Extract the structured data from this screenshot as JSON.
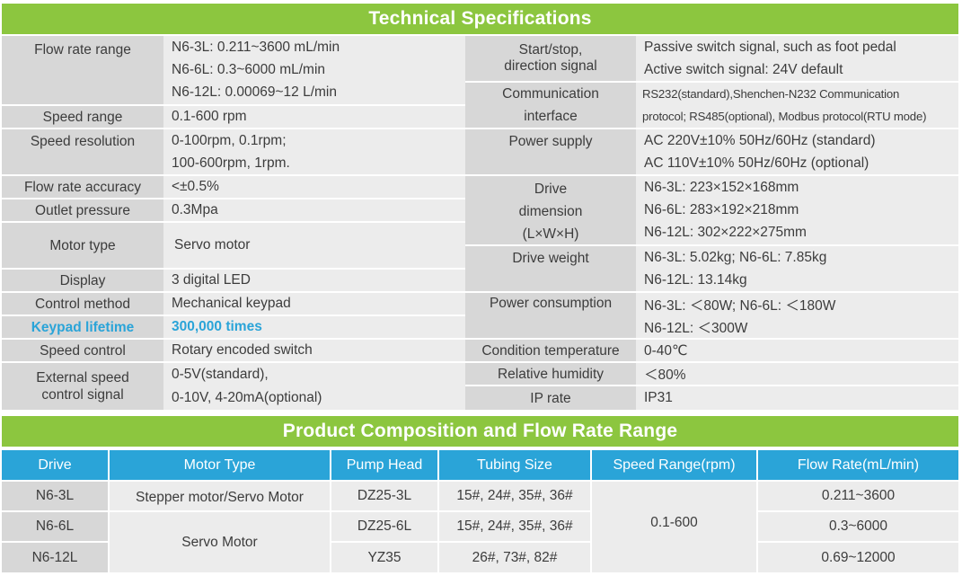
{
  "tech_title": "Technical Specifications",
  "left_specs": [
    {
      "label": "Flow rate range",
      "values": [
        "N6-3L: 0.211~3600 mL/min",
        "N6-6L: 0.3~6000 mL/min",
        "N6-12L: 0.00069~12 L/min"
      ]
    },
    {
      "label": "Speed range",
      "values": [
        "0.1-600 rpm"
      ]
    },
    {
      "label": "Speed resolution",
      "values": [
        "0-100rpm, 0.1rpm;",
        "100-600rpm, 1rpm."
      ]
    },
    {
      "label": "Flow rate accuracy",
      "values": [
        "<±0.5%"
      ]
    },
    {
      "label": "Outlet pressure",
      "values": [
        "0.3Mpa"
      ]
    },
    {
      "label": "Motor type",
      "values": [
        "Servo motor"
      ]
    },
    {
      "label": "Display",
      "values": [
        "3 digital LED"
      ]
    },
    {
      "label": "Control method",
      "values": [
        "Mechanical keypad"
      ]
    },
    {
      "label": "Keypad lifetime",
      "values": [
        "300,000 times"
      ]
    },
    {
      "label": "Speed control",
      "values": [
        "Rotary encoded switch"
      ]
    },
    {
      "label": "External speed control signal",
      "values": [
        "0-5V(standard),",
        "0-10V, 4-20mA(optional)"
      ]
    }
  ],
  "right_specs": [
    {
      "label": "Start/stop, direction signal",
      "values": [
        "Passive switch signal, such as foot pedal",
        "Active switch signal: 24V default"
      ]
    },
    {
      "label": "Communication interface",
      "values": [
        "RS232(standard),Shenchen-N232 Communication",
        "protocol; RS485(optional), Modbus protocol(RTU mode)"
      ]
    },
    {
      "label": "Power supply",
      "values": [
        "AC 220V±10% 50Hz/60Hz (standard)",
        "AC 110V±10% 50Hz/60Hz (optional)"
      ]
    },
    {
      "label": "Drive dimension (L×W×H)",
      "values": [
        "N6-3L: 223×152×168mm",
        "N6-6L: 283×192×218mm",
        "N6-12L: 302×222×275mm"
      ]
    },
    {
      "label": "Drive weight",
      "values": [
        "N6-3L: 5.02kg; N6-6L: 7.85kg",
        "N6-12L: 13.14kg"
      ]
    },
    {
      "label": "Power consumption",
      "values": [
        "N6-3L: ＜80W; N6-6L: ＜180W",
        "N6-12L: ＜300W"
      ]
    },
    {
      "label": "Condition temperature",
      "values": [
        "0-40℃"
      ]
    },
    {
      "label": "Relative humidity",
      "values": [
        "＜80%"
      ]
    },
    {
      "label": "IP rate",
      "values": [
        "IP31"
      ]
    }
  ],
  "comp_title": "Product Composition and Flow Rate Range",
  "comp_headers": [
    "Drive",
    "Motor Type",
    "Pump Head",
    "Tubing Size",
    "Speed Range(rpm)",
    "Flow Rate(mL/min)"
  ],
  "comp_rows": [
    {
      "drive": "N6-3L",
      "pump": "DZ25-3L",
      "tubing": "15#, 24#, 35#, 36#",
      "flow": "0.211~3600"
    },
    {
      "drive": "N6-6L",
      "pump": "DZ25-6L",
      "tubing": "15#, 24#, 35#, 36#",
      "flow": "0.3~6000"
    },
    {
      "drive": "N6-12L",
      "pump": "YZ35",
      "tubing": "26#, 73#, 82#",
      "flow": "0.69~12000"
    }
  ],
  "comp_motor": [
    "Stepper motor/Servo Motor",
    "Servo Motor"
  ],
  "comp_speed": "0.1-600"
}
